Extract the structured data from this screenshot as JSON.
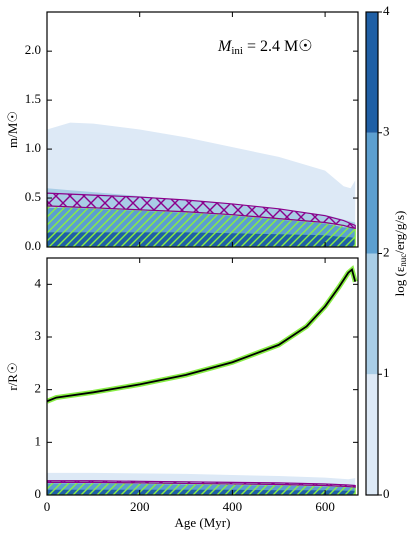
{
  "chart_data": [
    {
      "type": "area",
      "ylabel": "m/M☉",
      "annotation": {
        "main": "M",
        "sub": "ini",
        "rest": " = 2.4 M☉"
      },
      "xlim": [
        0,
        671
      ],
      "ylim": [
        0,
        2.4
      ],
      "xticks": [
        0,
        200,
        400,
        600
      ],
      "yticks": [
        {
          "value": 0,
          "label": "0.0"
        },
        0.5,
        {
          "value": 1,
          "label": "1.0"
        },
        1.5,
        {
          "value": 2,
          "label": "2.0"
        }
      ],
      "x": [
        0,
        50,
        100,
        200,
        300,
        400,
        500,
        600,
        640,
        655,
        665
      ],
      "series": [
        {
          "color": "#dde9f6",
          "values": [
            1.2,
            1.27,
            1.26,
            1.2,
            1.12,
            1.02,
            0.92,
            0.78,
            0.62,
            0.6,
            0.68
          ]
        },
        {
          "color": "#a9cde6",
          "values": [
            0.6,
            0.58,
            0.56,
            0.52,
            0.48,
            0.44,
            0.39,
            0.33,
            0.28,
            0.26,
            0.25
          ]
        },
        {
          "color": "#5c9fd0",
          "values": [
            0.4,
            0.4,
            0.39,
            0.37,
            0.35,
            0.32,
            0.28,
            0.24,
            0.2,
            0.2,
            0.18
          ]
        },
        {
          "color": "#1f5fa5",
          "values": [
            0.15,
            0.15,
            0.15,
            0.15,
            0.15,
            0.14,
            0.13,
            0.12,
            0.1,
            0.1,
            0.09
          ]
        },
        {
          "color": "#88ee44",
          "hatch": "/",
          "values": [
            0.42,
            0.41,
            0.4,
            0.38,
            0.36,
            0.33,
            0.29,
            0.25,
            0.22,
            0.2,
            0.19
          ]
        },
        {
          "color": "#8b008b",
          "hatch": "x",
          "values": [
            0.55,
            0.54,
            0.53,
            0.51,
            0.48,
            0.44,
            0.39,
            0.32,
            0.27,
            0.24,
            0.22
          ],
          "lower": [
            0.42,
            0.41,
            0.4,
            0.38,
            0.36,
            0.33,
            0.29,
            0.25,
            0.22,
            0.2,
            0.19
          ]
        }
      ]
    },
    {
      "type": "area",
      "ylabel": "r/R☉",
      "xlabel": "Age (Myr)",
      "xlim": [
        0,
        671
      ],
      "ylim": [
        0,
        4.5
      ],
      "xticks": [
        0,
        200,
        400,
        600
      ],
      "yticks": [
        0,
        1,
        2,
        3,
        4
      ],
      "x": [
        0,
        100,
        200,
        300,
        400,
        500,
        600,
        650,
        665
      ],
      "series": [
        {
          "color": "#dde9f6",
          "values": [
            0.42,
            0.42,
            0.41,
            0.4,
            0.38,
            0.36,
            0.33,
            0.3,
            0.32
          ]
        },
        {
          "color": "#a9cde6",
          "values": [
            0.28,
            0.28,
            0.27,
            0.26,
            0.25,
            0.24,
            0.22,
            0.2,
            0.2
          ]
        },
        {
          "color": "#5c9fd0",
          "values": [
            0.22,
            0.22,
            0.21,
            0.2,
            0.19,
            0.18,
            0.16,
            0.15,
            0.14
          ]
        },
        {
          "color": "#1f5fa5",
          "values": [
            0.1,
            0.1,
            0.1,
            0.1,
            0.1,
            0.09,
            0.09,
            0.08,
            0.08
          ]
        },
        {
          "color": "#88ee44",
          "hatch": "/",
          "values": [
            0.24,
            0.24,
            0.23,
            0.22,
            0.21,
            0.2,
            0.18,
            0.16,
            0.15
          ]
        },
        {
          "color": "#8b008b",
          "hatch": "x",
          "values": [
            0.27,
            0.27,
            0.26,
            0.25,
            0.24,
            0.23,
            0.21,
            0.19,
            0.18
          ],
          "lower": [
            0.24,
            0.24,
            0.23,
            0.22,
            0.21,
            0.2,
            0.18,
            0.16,
            0.15
          ]
        }
      ],
      "line": {
        "color": "#000000",
        "edgecolor": "#88ee44",
        "x": [
          0,
          20,
          100,
          200,
          300,
          400,
          500,
          560,
          600,
          630,
          650,
          658,
          665
        ],
        "values": [
          1.78,
          1.85,
          1.95,
          2.1,
          2.28,
          2.52,
          2.85,
          3.2,
          3.58,
          3.95,
          4.22,
          4.28,
          4.05
        ]
      }
    }
  ],
  "colorbar": {
    "label_main": "log (ε",
    "label_sub": "nuc",
    "label_rest": "/erg/g/s)",
    "lim": [
      0,
      4
    ],
    "ticks": [
      0,
      1,
      2,
      3,
      4
    ],
    "colors": [
      "#dde9f6",
      "#a9cde6",
      "#5c9fd0",
      "#1f5fa5"
    ]
  }
}
